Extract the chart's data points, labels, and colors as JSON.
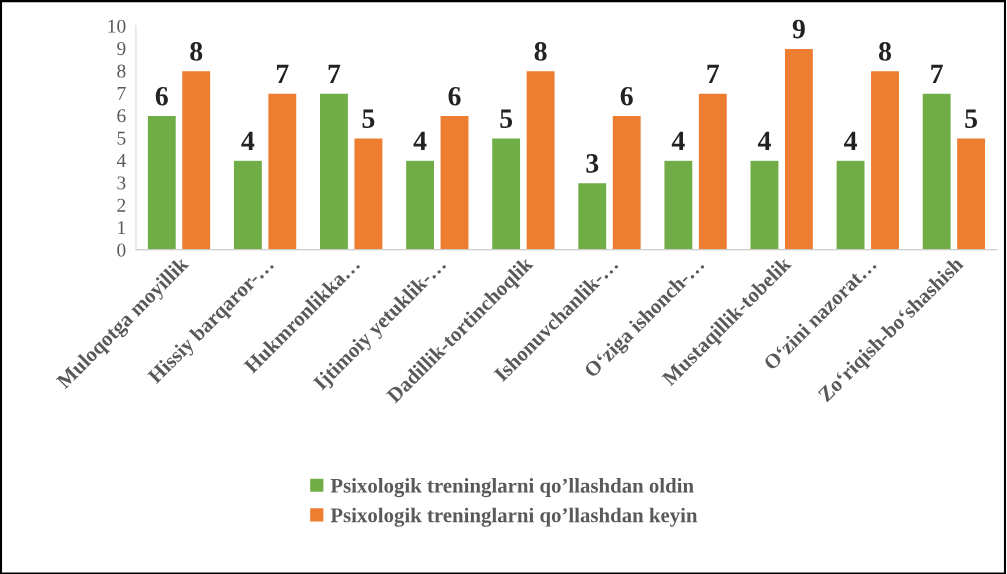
{
  "chart_data": {
    "type": "bar",
    "categories": [
      "Muloqotga moyillik",
      "Hissiy barqaror-…",
      "Hukmronlikka…",
      "Ijtimoiy yetuklik-…",
      "Dadillik-tortinchoqlik",
      "Ishonuvchanlik-…",
      "O‘ziga ishonch-…",
      "Mustaqillik-tobelik",
      "O‘zini nazorat…",
      "Zo‘riqish-bo‘shashish"
    ],
    "series": [
      {
        "name": "Psixologik treninglarni qo’llashdan oldin",
        "color": "#70ad47",
        "values": [
          6,
          4,
          7,
          4,
          5,
          3,
          4,
          4,
          4,
          7
        ]
      },
      {
        "name": "Psixologik treninglarni qo’llashdan keyin",
        "color": "#ed7d31",
        "values": [
          8,
          7,
          5,
          6,
          8,
          6,
          7,
          9,
          8,
          5
        ]
      }
    ],
    "ylim": [
      0,
      10
    ],
    "yticks": [
      0,
      1,
      2,
      3,
      4,
      5,
      6,
      7,
      8,
      9,
      10
    ],
    "data_labels": true,
    "grid": false,
    "legend": "bottom"
  }
}
